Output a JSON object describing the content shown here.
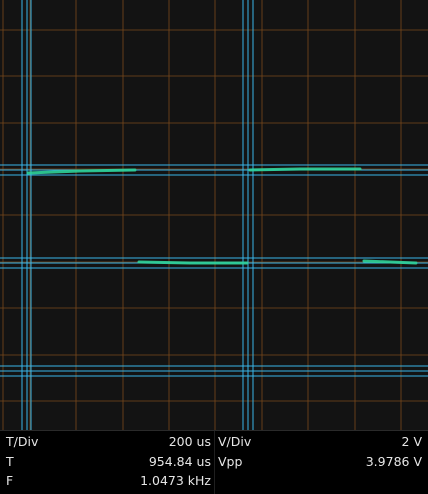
{
  "readout": {
    "left": [
      {
        "label": "T/Div",
        "value": "200 us"
      },
      {
        "label": "T",
        "value": "954.84 us"
      },
      {
        "label": "F",
        "value": "1.0473 kHz"
      }
    ],
    "right": [
      {
        "label": "V/Div",
        "value": "2 V"
      },
      {
        "label": "Vpp",
        "value": "3.9786 V"
      }
    ]
  },
  "colors": {
    "background": "#131313",
    "grid": "#7a4a1c",
    "cursor": "#38b6e8",
    "trace": "#2fd39a"
  },
  "icons": []
}
